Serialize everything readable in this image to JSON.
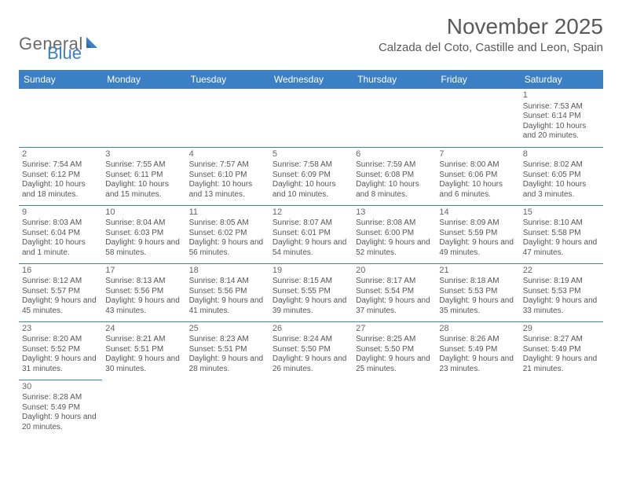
{
  "logo": {
    "text1": "General",
    "text2": "Blue"
  },
  "title": "November 2025",
  "location": "Calzada del Coto, Castille and Leon, Spain",
  "colors": {
    "header_bg": "#3b7fc4",
    "header_fg": "#ffffff",
    "rule": "#3b7fc4",
    "text": "#555555",
    "title": "#5a5a5a",
    "logo_gray": "#6a6a6a",
    "logo_blue": "#3b7fc4"
  },
  "day_names": [
    "Sunday",
    "Monday",
    "Tuesday",
    "Wednesday",
    "Thursday",
    "Friday",
    "Saturday"
  ],
  "weeks": [
    [
      null,
      null,
      null,
      null,
      null,
      null,
      {
        "n": "1",
        "sr": "Sunrise: 7:53 AM",
        "ss": "Sunset: 6:14 PM",
        "dl": "Daylight: 10 hours and 20 minutes."
      }
    ],
    [
      {
        "n": "2",
        "sr": "Sunrise: 7:54 AM",
        "ss": "Sunset: 6:12 PM",
        "dl": "Daylight: 10 hours and 18 minutes."
      },
      {
        "n": "3",
        "sr": "Sunrise: 7:55 AM",
        "ss": "Sunset: 6:11 PM",
        "dl": "Daylight: 10 hours and 15 minutes."
      },
      {
        "n": "4",
        "sr": "Sunrise: 7:57 AM",
        "ss": "Sunset: 6:10 PM",
        "dl": "Daylight: 10 hours and 13 minutes."
      },
      {
        "n": "5",
        "sr": "Sunrise: 7:58 AM",
        "ss": "Sunset: 6:09 PM",
        "dl": "Daylight: 10 hours and 10 minutes."
      },
      {
        "n": "6",
        "sr": "Sunrise: 7:59 AM",
        "ss": "Sunset: 6:08 PM",
        "dl": "Daylight: 10 hours and 8 minutes."
      },
      {
        "n": "7",
        "sr": "Sunrise: 8:00 AM",
        "ss": "Sunset: 6:06 PM",
        "dl": "Daylight: 10 hours and 6 minutes."
      },
      {
        "n": "8",
        "sr": "Sunrise: 8:02 AM",
        "ss": "Sunset: 6:05 PM",
        "dl": "Daylight: 10 hours and 3 minutes."
      }
    ],
    [
      {
        "n": "9",
        "sr": "Sunrise: 8:03 AM",
        "ss": "Sunset: 6:04 PM",
        "dl": "Daylight: 10 hours and 1 minute."
      },
      {
        "n": "10",
        "sr": "Sunrise: 8:04 AM",
        "ss": "Sunset: 6:03 PM",
        "dl": "Daylight: 9 hours and 58 minutes."
      },
      {
        "n": "11",
        "sr": "Sunrise: 8:05 AM",
        "ss": "Sunset: 6:02 PM",
        "dl": "Daylight: 9 hours and 56 minutes."
      },
      {
        "n": "12",
        "sr": "Sunrise: 8:07 AM",
        "ss": "Sunset: 6:01 PM",
        "dl": "Daylight: 9 hours and 54 minutes."
      },
      {
        "n": "13",
        "sr": "Sunrise: 8:08 AM",
        "ss": "Sunset: 6:00 PM",
        "dl": "Daylight: 9 hours and 52 minutes."
      },
      {
        "n": "14",
        "sr": "Sunrise: 8:09 AM",
        "ss": "Sunset: 5:59 PM",
        "dl": "Daylight: 9 hours and 49 minutes."
      },
      {
        "n": "15",
        "sr": "Sunrise: 8:10 AM",
        "ss": "Sunset: 5:58 PM",
        "dl": "Daylight: 9 hours and 47 minutes."
      }
    ],
    [
      {
        "n": "16",
        "sr": "Sunrise: 8:12 AM",
        "ss": "Sunset: 5:57 PM",
        "dl": "Daylight: 9 hours and 45 minutes."
      },
      {
        "n": "17",
        "sr": "Sunrise: 8:13 AM",
        "ss": "Sunset: 5:56 PM",
        "dl": "Daylight: 9 hours and 43 minutes."
      },
      {
        "n": "18",
        "sr": "Sunrise: 8:14 AM",
        "ss": "Sunset: 5:56 PM",
        "dl": "Daylight: 9 hours and 41 minutes."
      },
      {
        "n": "19",
        "sr": "Sunrise: 8:15 AM",
        "ss": "Sunset: 5:55 PM",
        "dl": "Daylight: 9 hours and 39 minutes."
      },
      {
        "n": "20",
        "sr": "Sunrise: 8:17 AM",
        "ss": "Sunset: 5:54 PM",
        "dl": "Daylight: 9 hours and 37 minutes."
      },
      {
        "n": "21",
        "sr": "Sunrise: 8:18 AM",
        "ss": "Sunset: 5:53 PM",
        "dl": "Daylight: 9 hours and 35 minutes."
      },
      {
        "n": "22",
        "sr": "Sunrise: 8:19 AM",
        "ss": "Sunset: 5:53 PM",
        "dl": "Daylight: 9 hours and 33 minutes."
      }
    ],
    [
      {
        "n": "23",
        "sr": "Sunrise: 8:20 AM",
        "ss": "Sunset: 5:52 PM",
        "dl": "Daylight: 9 hours and 31 minutes."
      },
      {
        "n": "24",
        "sr": "Sunrise: 8:21 AM",
        "ss": "Sunset: 5:51 PM",
        "dl": "Daylight: 9 hours and 30 minutes."
      },
      {
        "n": "25",
        "sr": "Sunrise: 8:23 AM",
        "ss": "Sunset: 5:51 PM",
        "dl": "Daylight: 9 hours and 28 minutes."
      },
      {
        "n": "26",
        "sr": "Sunrise: 8:24 AM",
        "ss": "Sunset: 5:50 PM",
        "dl": "Daylight: 9 hours and 26 minutes."
      },
      {
        "n": "27",
        "sr": "Sunrise: 8:25 AM",
        "ss": "Sunset: 5:50 PM",
        "dl": "Daylight: 9 hours and 25 minutes."
      },
      {
        "n": "28",
        "sr": "Sunrise: 8:26 AM",
        "ss": "Sunset: 5:49 PM",
        "dl": "Daylight: 9 hours and 23 minutes."
      },
      {
        "n": "29",
        "sr": "Sunrise: 8:27 AM",
        "ss": "Sunset: 5:49 PM",
        "dl": "Daylight: 9 hours and 21 minutes."
      }
    ],
    [
      {
        "n": "30",
        "sr": "Sunrise: 8:28 AM",
        "ss": "Sunset: 5:49 PM",
        "dl": "Daylight: 9 hours and 20 minutes."
      },
      null,
      null,
      null,
      null,
      null,
      null
    ]
  ]
}
